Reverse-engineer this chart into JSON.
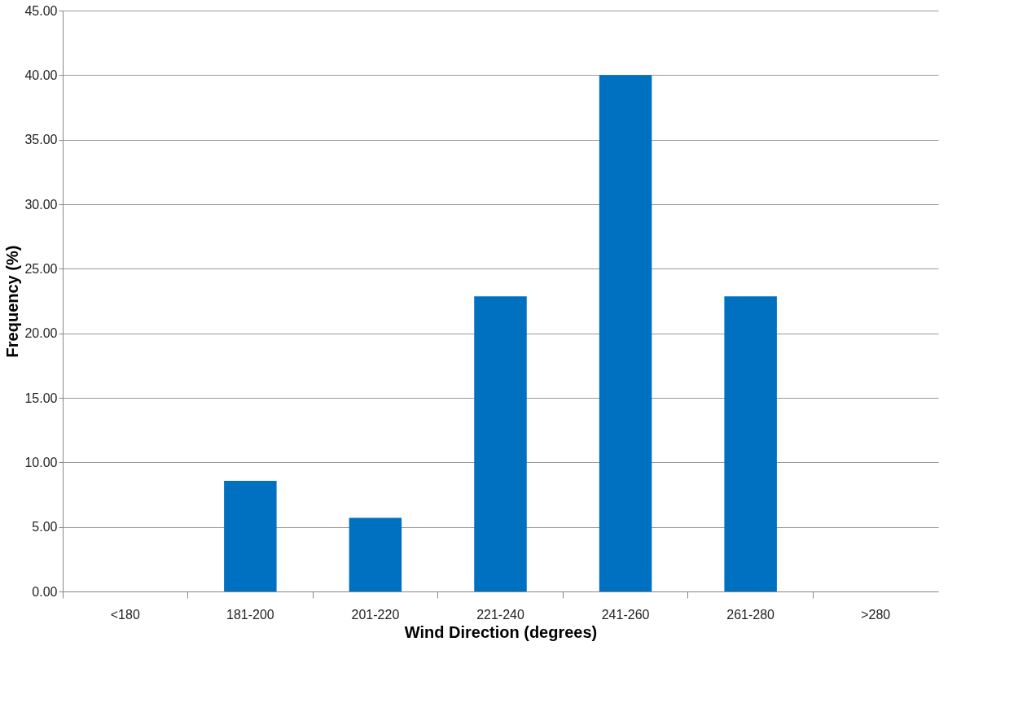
{
  "chart_data": {
    "type": "bar",
    "xlabel": "Wind Direction (degrees)",
    "ylabel": "Frequency (%)",
    "categories": [
      "<180",
      "181-200",
      "201-220",
      "221-240",
      "241-260",
      "261-280",
      ">280"
    ],
    "values": [
      0,
      8.57,
      5.71,
      22.86,
      40.0,
      22.86,
      0
    ],
    "color": "#0070c0",
    "ylim": [
      0,
      45
    ],
    "yticks": [
      {
        "value": 0,
        "label": "0.00"
      },
      {
        "value": 5,
        "label": "5.00"
      },
      {
        "value": 10,
        "label": "10.00"
      },
      {
        "value": 15,
        "label": "15.00"
      },
      {
        "value": 20,
        "label": "20.00"
      },
      {
        "value": 25,
        "label": "25.00"
      },
      {
        "value": 30,
        "label": "30.00"
      },
      {
        "value": 35,
        "label": "35.00"
      },
      {
        "value": 40,
        "label": "40.00"
      },
      {
        "value": 45,
        "label": "45.00"
      }
    ],
    "grid": "y"
  }
}
